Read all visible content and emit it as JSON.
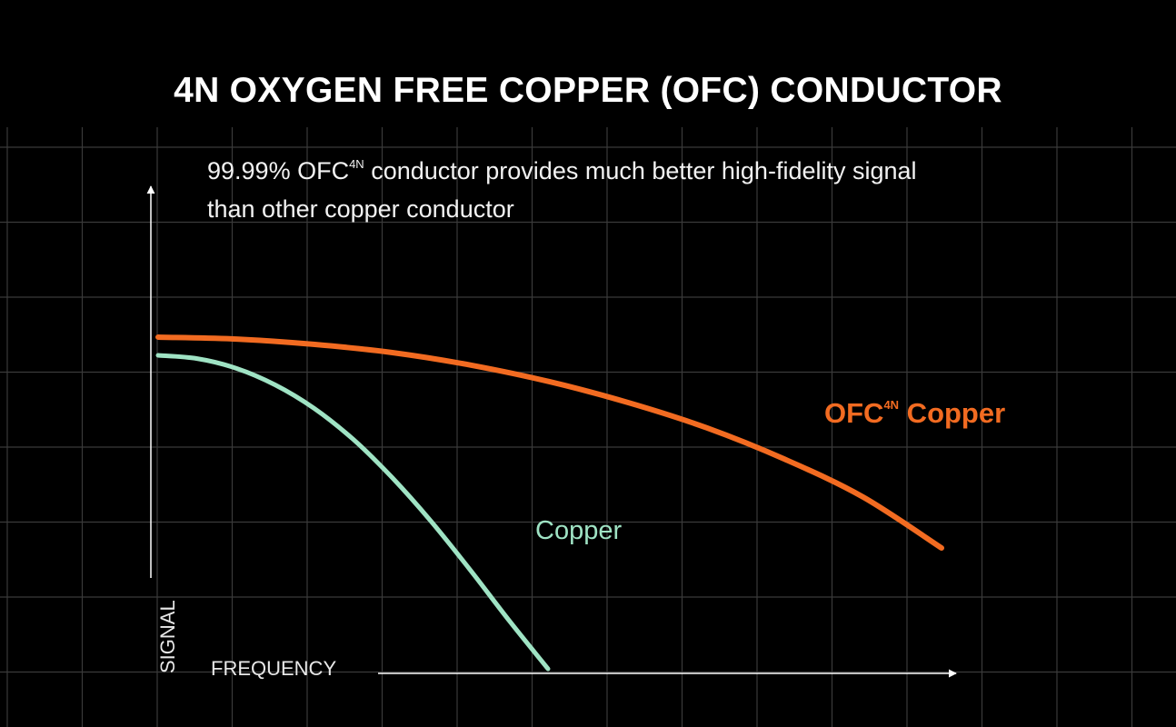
{
  "title": "4N OXYGEN FREE COPPER (OFC) CONDUCTOR",
  "subtitle": {
    "line1_before": "99.99% OFC",
    "line1_sup": "4N",
    "line1_after": " conductor provides much better high-fidelity signal",
    "line2": "than other copper conductor"
  },
  "colors": {
    "background": "#000000",
    "grid": "#3a3a3a",
    "axis": "#ffffff",
    "ofc_series": "#f26b21",
    "copper_series": "#9fe3c4"
  },
  "chart_data": {
    "type": "line",
    "xlabel": "FREQUENCY",
    "ylabel": "SIGNAL",
    "axis_ticks": "none",
    "grid": true,
    "xlim": [
      0,
      100
    ],
    "ylim": [
      0,
      100
    ],
    "series": [
      {
        "label_main": "OFC",
        "label_sup": "4N",
        "label_after": " Copper",
        "color_key": "ofc_series",
        "x": [
          0,
          10,
          20,
          30,
          40,
          50,
          60,
          70,
          80,
          90,
          100
        ],
        "y": [
          72,
          71.6,
          70.5,
          68.8,
          66.2,
          62.8,
          58.5,
          53.3,
          46.8,
          39,
          28.5
        ]
      },
      {
        "label_main": "Copper",
        "color_key": "copper_series",
        "x": [
          0,
          5,
          10,
          15,
          20,
          25,
          30,
          35,
          40,
          45,
          50
        ],
        "y": [
          68,
          67.3,
          65.2,
          61.6,
          56.5,
          49.8,
          41.5,
          32,
          21.5,
          10.5,
          0
        ]
      }
    ]
  }
}
